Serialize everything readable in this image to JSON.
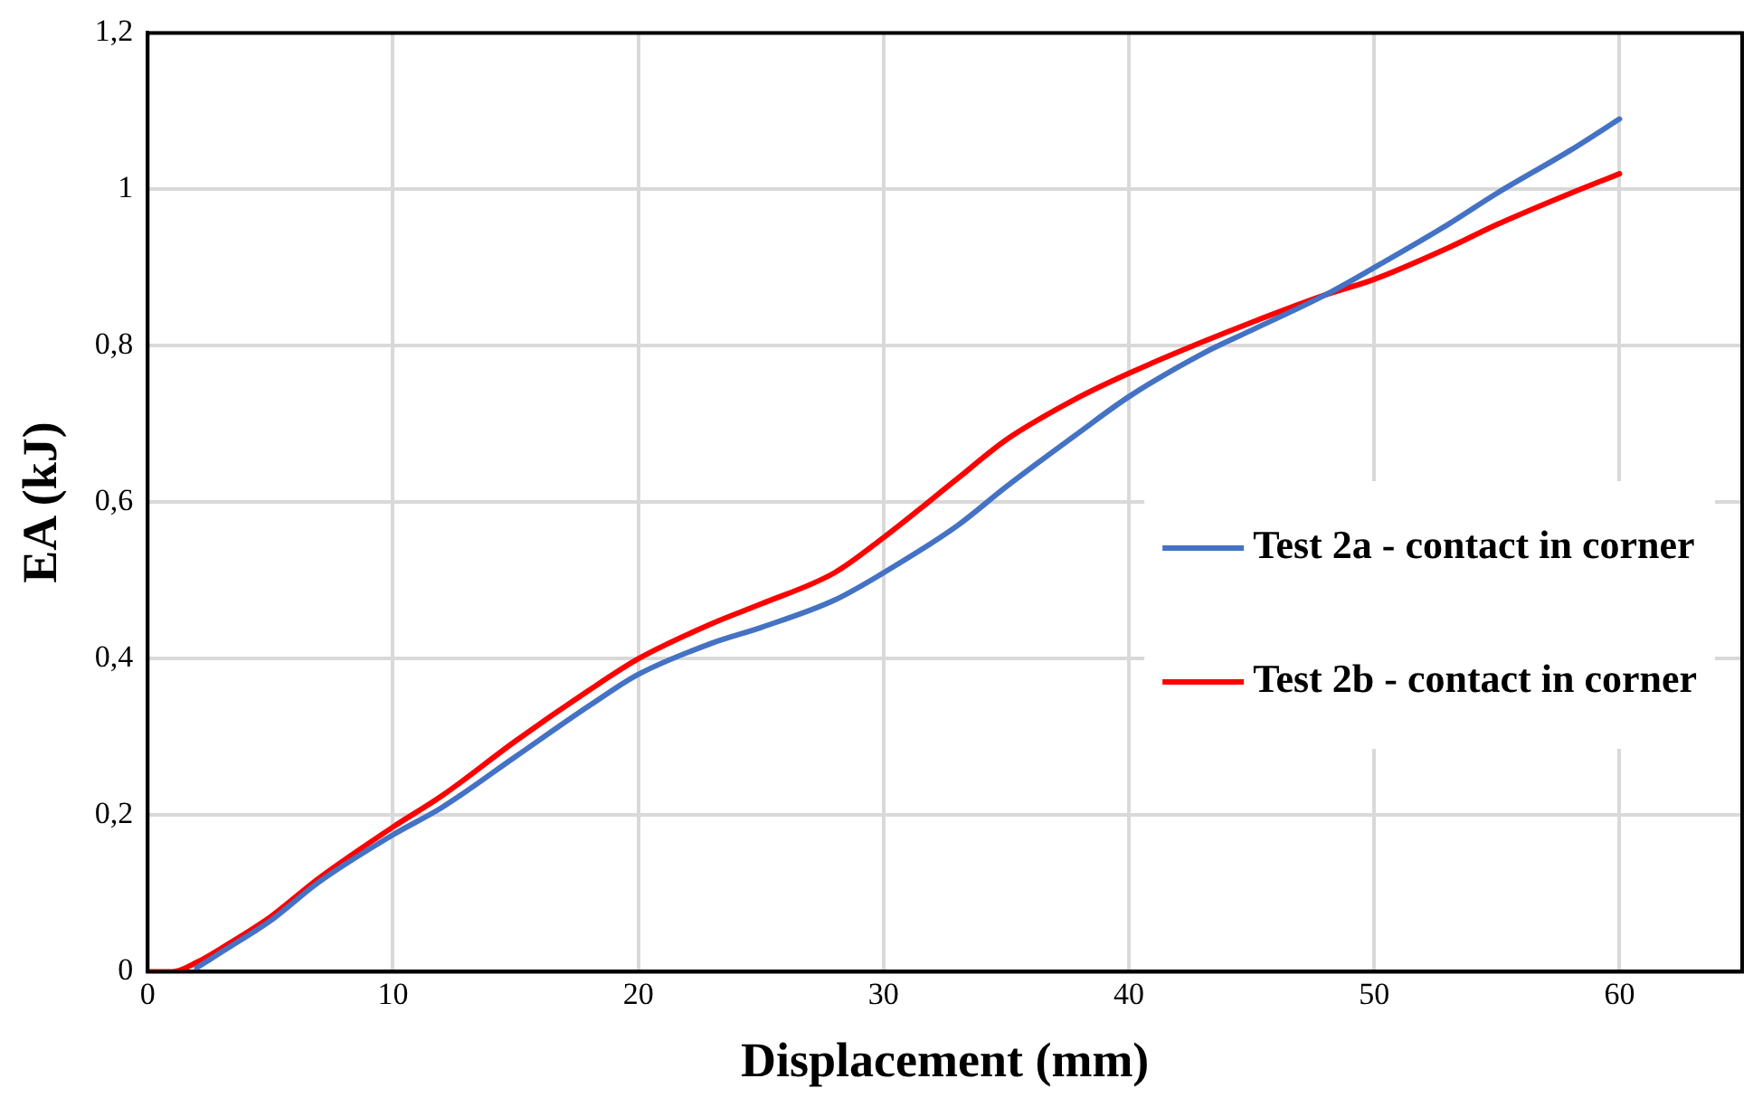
{
  "chart_data": {
    "type": "line",
    "xlabel": "Displacement (mm)",
    "ylabel": "EA (kJ)",
    "xlim": [
      0,
      65
    ],
    "xticks": [
      0,
      10,
      20,
      30,
      40,
      50,
      60
    ],
    "ylim": [
      0,
      1.2
    ],
    "yticks": [
      0,
      {
        "value": 0.2,
        "label": "0,2"
      },
      {
        "value": 0.4,
        "label": "0,4"
      },
      {
        "value": 0.6,
        "label": "0,6"
      },
      {
        "value": 0.8,
        "label": "0,8"
      },
      1,
      {
        "value": 1.2,
        "label": "1,2"
      }
    ],
    "grid": true,
    "legend": "right",
    "marker": "none",
    "line_style": "solid",
    "series": [
      {
        "name": "Test 2a - contact in corner",
        "color": "#4472c4",
        "x": [
          2,
          3,
          5,
          7,
          10,
          12,
          15,
          18,
          20,
          23,
          25,
          28,
          30,
          33,
          35,
          38,
          40,
          43,
          45,
          48,
          50,
          53,
          55,
          58,
          60
        ],
        "values": [
          0.005,
          0.025,
          0.065,
          0.115,
          0.175,
          0.21,
          0.275,
          0.34,
          0.38,
          0.42,
          0.44,
          0.475,
          0.51,
          0.57,
          0.62,
          0.69,
          0.735,
          0.79,
          0.82,
          0.865,
          0.9,
          0.955,
          0.995,
          1.05,
          1.09
        ]
      },
      {
        "name": "Test 2b - contact in corner",
        "color": "#ff0000",
        "x": [
          0,
          1,
          2,
          3,
          5,
          7,
          10,
          12,
          15,
          18,
          20,
          23,
          25,
          28,
          30,
          33,
          35,
          38,
          40,
          43,
          45,
          48,
          50,
          53,
          55,
          58,
          60
        ],
        "values": [
          0,
          0,
          0.012,
          0.03,
          0.07,
          0.12,
          0.185,
          0.225,
          0.295,
          0.36,
          0.4,
          0.445,
          0.47,
          0.51,
          0.555,
          0.63,
          0.68,
          0.735,
          0.765,
          0.805,
          0.83,
          0.865,
          0.885,
          0.925,
          0.955,
          0.995,
          1.02
        ]
      }
    ]
  }
}
